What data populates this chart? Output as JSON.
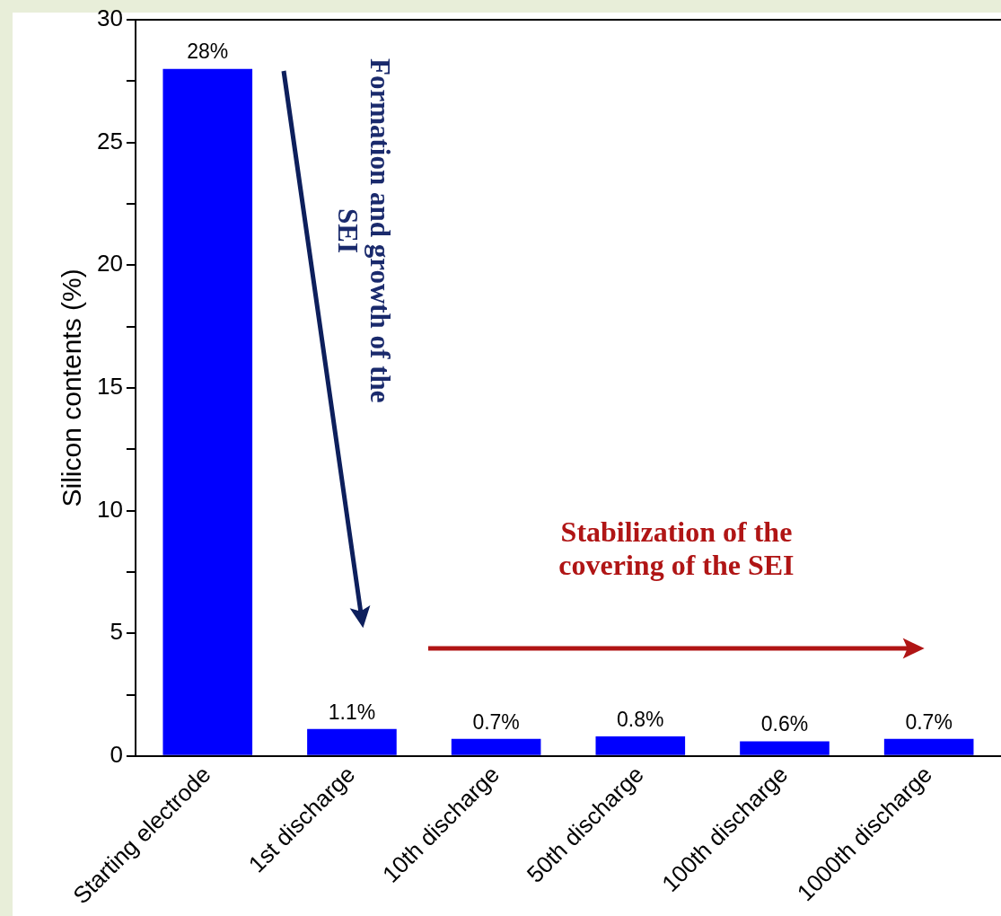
{
  "chart_data": {
    "type": "bar",
    "ylabel": "Silicon contents (%)",
    "categories": [
      "Starting electrode",
      "1st discharge",
      "10th discharge",
      "50th discharge",
      "100th discharge",
      "1000th discharge"
    ],
    "values": [
      28,
      1.1,
      0.7,
      0.8,
      0.6,
      0.7
    ],
    "value_labels": [
      "28%",
      "1.1%",
      "0.7%",
      "0.8%",
      "0.6%",
      "0.7%"
    ],
    "color": "#0000ff",
    "ylim": [
      0,
      30
    ],
    "yticks": [
      0,
      {
        "value": 2.5,
        "label": null
      },
      5,
      {
        "value": 7.5,
        "label": null
      },
      10,
      {
        "value": 12.5,
        "label": null
      },
      15,
      {
        "value": 17.5,
        "label": null
      },
      20,
      {
        "value": 22.5,
        "label": null
      },
      25,
      {
        "value": 27.5,
        "label": null
      },
      30
    ],
    "grid": false,
    "annotations": [
      "Formation and growth of the SEI",
      "Stabilization of the covering of the SEI"
    ]
  }
}
